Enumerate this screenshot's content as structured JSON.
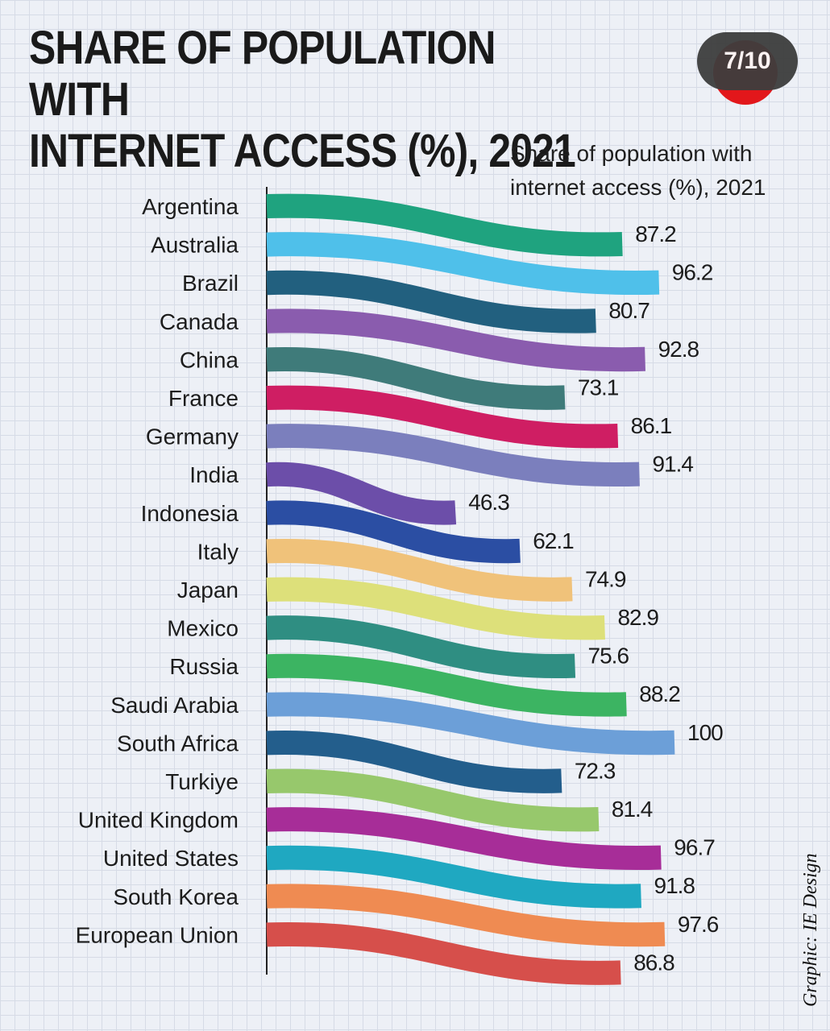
{
  "header": {
    "title_line1": "SHARE OF POPULATION WITH",
    "title_line2": "INTERNET ACCESS (%), 2021",
    "pager": "7/10",
    "subtitle_line1": "Share of population with",
    "subtitle_line2": "internet access (%), 2021"
  },
  "credit": "Graphic: IE Design",
  "colors": {
    "background": "#edf0f6",
    "accent_red": "#e2171b"
  },
  "chart_data": {
    "type": "bar",
    "style": "wavy horizontal ribbons",
    "title": "SHARE OF POPULATION WITH INTERNET ACCESS (%), 2021",
    "subtitle": "Share of population with internet access (%), 2021",
    "xlim": [
      0,
      100
    ],
    "grid": true,
    "categories": [
      "Argentina",
      "Australia",
      "Brazil",
      "Canada",
      "China",
      "France",
      "Germany",
      "India",
      "Indonesia",
      "Italy",
      "Japan",
      "Mexico",
      "Russia",
      "Saudi Arabia",
      "South Africa",
      "Turkiye",
      "United Kingdom",
      "United States",
      "South Korea",
      "European Union"
    ],
    "values": [
      87.2,
      96.2,
      80.7,
      92.8,
      73.1,
      86.1,
      91.4,
      46.3,
      62.1,
      74.9,
      82.9,
      75.6,
      88.2,
      100,
      72.3,
      81.4,
      96.7,
      91.8,
      97.6,
      86.8
    ],
    "value_labels": [
      "87.2",
      "96.2",
      "80.7",
      "92.8",
      "73.1",
      "86.1",
      "91.4",
      "46.3",
      "62.1",
      "74.9",
      "82.9",
      "75.6",
      "88.2",
      "100",
      "72.3",
      "81.4",
      "96.7",
      "91.8",
      "97.6",
      "86.8"
    ],
    "series_colors": [
      "#1fa37f",
      "#4fc0ea",
      "#22607f",
      "#8a5cae",
      "#3f7b7a",
      "#cf1e63",
      "#7b7fbd",
      "#6c4ea9",
      "#2b4ea3",
      "#f0c27a",
      "#dde07a",
      "#2f8e82",
      "#3cb462",
      "#6c9fd8",
      "#235e8c",
      "#97c86c",
      "#a72d98",
      "#1fa8c1",
      "#ef8b52",
      "#d64f4b"
    ]
  }
}
